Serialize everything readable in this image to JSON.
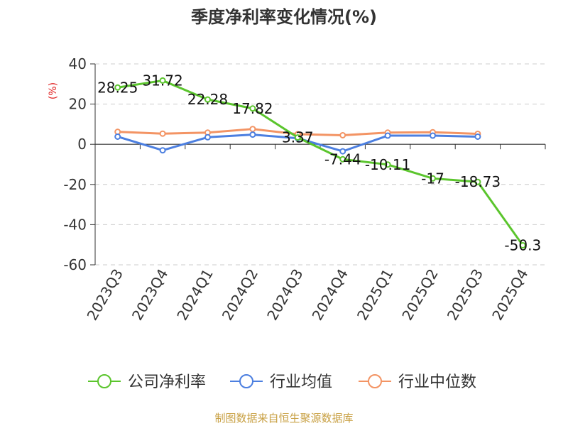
{
  "chart_data": {
    "type": "line",
    "title": "季度净利率变化情况(%)",
    "ylabel": "(%)",
    "ylim": [
      -60,
      40
    ],
    "yticks": [
      40,
      20,
      0,
      -20,
      -40,
      -60
    ],
    "categories": [
      "2023Q3",
      "2023Q4",
      "2024Q1",
      "2024Q2",
      "2024Q3",
      "2024Q4",
      "2025Q1",
      "2025Q2",
      "2025Q3",
      "2025Q4"
    ],
    "grid": true,
    "legend_position": "bottom",
    "series": [
      {
        "name": "公司净利率",
        "color": "#5bc52d",
        "values": [
          28.25,
          31.72,
          22.28,
          17.82,
          3.37,
          -7.44,
          -10.11,
          -17,
          -18.73,
          -50.3
        ],
        "labels": [
          "28.25",
          "31.72",
          "22.28",
          "17.82",
          "3.37",
          "-7.44",
          "-10.11",
          "-17",
          "-18.73",
          "-50.3"
        ]
      },
      {
        "name": "行业均值",
        "color": "#4c7fe0",
        "values": [
          3.8,
          -3.0,
          3.5,
          4.8,
          3.0,
          -3.5,
          4.3,
          4.3,
          3.8,
          null
        ]
      },
      {
        "name": "行业中位数",
        "color": "#f39464",
        "values": [
          6.2,
          5.3,
          5.8,
          7.6,
          5.0,
          4.5,
          5.8,
          6.0,
          5.2,
          null
        ]
      }
    ],
    "source": "制图数据来自恒生聚源数据库"
  }
}
